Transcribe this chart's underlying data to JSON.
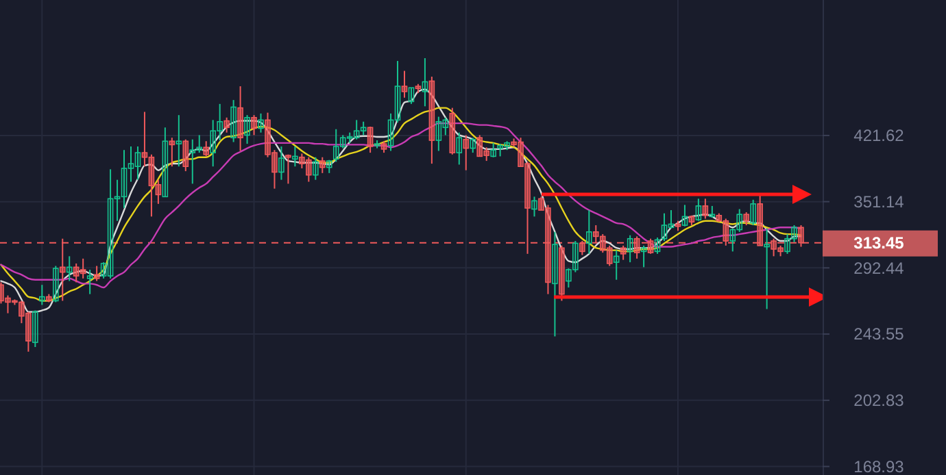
{
  "chart_data": {
    "type": "candlestick",
    "categories": [
      null,
      null,
      null,
      null,
      null,
      null,
      null,
      null,
      null,
      null,
      null,
      null,
      null,
      null,
      null,
      null,
      null,
      null,
      null,
      null,
      null,
      null,
      null,
      null,
      null,
      null,
      null,
      null,
      null,
      null,
      null,
      null,
      null,
      null,
      null,
      null,
      null,
      null,
      null,
      null,
      null,
      null,
      null,
      null,
      null,
      null,
      null,
      null,
      null,
      null,
      null,
      null,
      null,
      null,
      null,
      null,
      null,
      null,
      null,
      null,
      null,
      null,
      null,
      null,
      null,
      null,
      null,
      null,
      null,
      null,
      null,
      null,
      null,
      null,
      null,
      null,
      null,
      null,
      null,
      null,
      null,
      null,
      null,
      null,
      null,
      null,
      null,
      null,
      null,
      null,
      null,
      null,
      null,
      null,
      null,
      null,
      null,
      null,
      null,
      null,
      null,
      null,
      null,
      null,
      null,
      null,
      null,
      null,
      null,
      null,
      null,
      null,
      null,
      null,
      null,
      null,
      null,
      null
    ],
    "ohlc": [
      [
        279,
        281,
        265,
        267
      ],
      [
        269,
        271,
        258,
        266
      ],
      [
        267,
        268,
        264,
        266
      ],
      [
        266,
        267,
        251,
        256
      ],
      [
        258,
        259,
        232,
        239
      ],
      [
        238,
        260,
        235,
        259
      ],
      [
        267,
        279,
        264,
        270
      ],
      [
        270,
        272,
        266,
        267
      ],
      [
        267,
        294,
        266,
        292
      ],
      [
        293,
        317,
        267,
        289
      ],
      [
        289,
        302,
        282,
        293
      ],
      [
        293,
        296,
        281,
        286
      ],
      [
        291,
        300,
        284,
        288
      ],
      [
        284,
        291,
        272,
        286
      ],
      [
        287,
        294,
        282,
        284
      ],
      [
        286,
        297,
        284,
        296
      ],
      [
        286,
        384,
        284,
        354
      ],
      [
        354,
        373,
        333,
        356
      ],
      [
        356,
        405,
        345,
        385
      ],
      [
        385,
        409,
        371,
        390
      ],
      [
        387,
        409,
        373,
        402
      ],
      [
        402,
        450,
        387,
        397
      ],
      [
        397,
        400,
        337,
        367
      ],
      [
        368,
        373,
        349,
        358
      ],
      [
        356,
        431,
        356,
        415
      ],
      [
        415,
        419,
        387,
        411
      ],
      [
        412,
        446,
        387,
        415
      ],
      [
        415,
        417,
        382,
        387
      ],
      [
        402,
        417,
        369,
        405
      ],
      [
        405,
        422,
        402,
        408
      ],
      [
        408,
        415,
        398,
        400
      ],
      [
        402,
        440,
        387,
        427
      ],
      [
        427,
        460,
        416,
        438
      ],
      [
        439,
        443,
        425,
        431
      ],
      [
        419,
        465,
        414,
        456
      ],
      [
        455,
        483,
        404,
        419
      ],
      [
        422,
        446,
        412,
        443
      ],
      [
        443,
        446,
        422,
        430
      ],
      [
        430,
        448,
        425,
        440
      ],
      [
        440,
        449,
        397,
        400
      ],
      [
        402,
        405,
        364,
        381
      ],
      [
        381,
        409,
        373,
        396
      ],
      [
        399,
        400,
        369,
        397
      ],
      [
        395,
        409,
        387,
        398
      ],
      [
        397,
        401,
        385,
        390
      ],
      [
        394,
        397,
        371,
        378
      ],
      [
        378,
        397,
        373,
        392
      ],
      [
        393,
        397,
        380,
        386
      ],
      [
        386,
        394,
        380,
        393
      ],
      [
        395,
        429,
        392,
        409
      ],
      [
        409,
        422,
        407,
        419
      ],
      [
        419,
        425,
        413,
        420
      ],
      [
        419,
        440,
        417,
        427
      ],
      [
        427,
        438,
        422,
        431
      ],
      [
        431,
        432,
        402,
        409
      ],
      [
        410,
        416,
        407,
        412
      ],
      [
        412,
        415,
        402,
        406
      ],
      [
        410,
        448,
        404,
        440
      ],
      [
        440,
        518,
        437,
        483
      ],
      [
        483,
        504,
        468,
        476
      ],
      [
        463,
        481,
        460,
        481
      ],
      [
        483,
        486,
        474,
        480
      ],
      [
        476,
        522,
        457,
        489
      ],
      [
        490,
        496,
        390,
        416
      ],
      [
        416,
        444,
        404,
        438
      ],
      [
        431,
        443,
        422,
        440
      ],
      [
        448,
        455,
        400,
        402
      ],
      [
        402,
        425,
        389,
        419
      ],
      [
        417,
        422,
        383,
        407
      ],
      [
        407,
        419,
        402,
        417
      ],
      [
        419,
        422,
        398,
        398
      ],
      [
        404,
        408,
        393,
        399
      ],
      [
        398,
        413,
        397,
        405
      ],
      [
        407,
        412,
        398,
        410
      ],
      [
        409,
        415,
        405,
        413
      ],
      [
        414,
        418,
        409,
        411
      ],
      [
        414,
        419,
        387,
        387
      ],
      [
        390,
        392,
        304,
        345
      ],
      [
        344,
        356,
        337,
        352
      ],
      [
        354,
        356,
        343,
        343
      ],
      [
        345,
        348,
        272,
        281
      ],
      [
        280,
        323,
        242,
        312
      ],
      [
        309,
        311,
        267,
        272
      ],
      [
        282,
        292,
        277,
        291
      ],
      [
        291,
        315,
        289,
        313
      ],
      [
        313,
        315,
        303,
        306
      ],
      [
        313,
        343,
        304,
        323
      ],
      [
        323,
        329,
        313,
        319
      ],
      [
        319,
        321,
        305,
        307
      ],
      [
        309,
        311,
        294,
        296
      ],
      [
        297,
        307,
        283,
        302
      ],
      [
        309,
        311,
        299,
        304
      ],
      [
        306,
        320,
        297,
        317
      ],
      [
        317,
        319,
        300,
        305
      ],
      [
        306,
        311,
        293,
        309
      ],
      [
        315,
        317,
        304,
        305
      ],
      [
        306,
        318,
        304,
        316
      ],
      [
        317,
        340,
        315,
        329
      ],
      [
        327,
        343,
        326,
        330
      ],
      [
        330,
        333,
        324,
        328
      ],
      [
        329,
        348,
        328,
        337
      ],
      [
        337,
        338,
        329,
        332
      ],
      [
        334,
        354,
        333,
        347
      ],
      [
        347,
        354,
        335,
        338
      ],
      [
        337,
        347,
        336,
        339
      ],
      [
        338,
        340,
        332,
        333
      ],
      [
        333,
        335,
        311,
        315
      ],
      [
        315,
        326,
        306,
        325
      ],
      [
        325,
        344,
        323,
        339
      ],
      [
        339,
        341,
        329,
        333
      ],
      [
        331,
        353,
        329,
        349
      ],
      [
        349,
        359,
        311,
        311
      ],
      [
        310,
        326,
        261,
        312
      ],
      [
        315,
        317,
        302,
        308
      ],
      [
        309,
        311,
        302,
        306
      ],
      [
        306,
        321,
        304,
        317
      ],
      [
        317,
        329,
        314,
        327
      ],
      [
        327,
        329,
        310,
        313.45
      ]
    ],
    "series": [
      {
        "type": "line",
        "color": "#d9d9d9",
        "values": [
          282,
          280,
          277,
          268,
          259,
          259,
          260,
          262,
          272,
          282,
          287,
          289,
          290,
          288,
          286,
          287,
          311,
          327,
          343,
          360,
          374,
          388,
          389,
          383,
          388,
          390,
          390,
          395,
          404,
          406,
          404,
          412,
          422,
          432,
          437,
          439,
          439,
          439,
          437,
          427,
          414,
          402,
          393,
          392,
          391,
          391,
          391,
          390,
          389,
          395,
          404,
          414,
          420,
          421,
          421,
          420,
          420,
          422,
          441,
          462,
          464,
          476,
          479,
          471,
          457,
          443,
          431,
          422,
          420,
          417,
          410,
          406,
          406,
          406,
          407,
          408,
          402,
          390,
          374,
          360,
          339,
          323,
          308,
          298,
          297,
          300,
          304,
          311,
          315,
          313,
          309,
          308,
          308,
          309,
          309,
          309,
          313,
          319,
          327,
          331,
          335,
          337,
          338,
          339,
          337,
          333,
          330,
          327,
          331,
          333,
          331,
          331,
          325,
          319,
          315,
          315,
          319,
          319
        ]
      },
      {
        "type": "line",
        "color": "#e6d21e",
        "values": [
          295,
          288,
          282,
          276,
          270,
          269,
          267,
          267,
          269,
          271,
          274,
          276,
          279,
          282,
          286,
          291,
          304,
          315,
          327,
          337,
          347,
          356,
          363,
          374,
          385,
          391,
          393,
          395,
          395,
          397,
          397,
          402,
          414,
          420,
          421,
          423,
          426,
          430,
          432,
          431,
          428,
          422,
          416,
          410,
          404,
          399,
          395,
          391,
          391,
          395,
          398,
          401,
          403,
          406,
          410,
          411,
          414,
          417,
          425,
          436,
          441,
          446,
          450,
          452,
          455,
          455,
          450,
          441,
          431,
          422,
          416,
          414,
          413,
          411,
          410,
          408,
          402,
          395,
          388,
          378,
          369,
          358,
          345,
          333,
          323,
          317,
          313,
          309,
          308,
          307,
          307,
          306,
          306,
          307,
          308,
          308,
          309,
          313,
          317,
          321,
          325,
          328,
          331,
          333,
          333,
          332,
          331,
          330,
          331,
          331,
          330,
          329,
          327,
          325,
          322,
          321,
          321,
          320
        ]
      },
      {
        "type": "line",
        "color": "#c83cb4",
        "values": [
          295,
          292,
          289,
          287,
          284,
          283,
          283,
          283,
          283,
          283,
          284,
          282,
          280,
          280,
          279,
          277,
          282,
          286,
          289,
          295,
          300,
          308,
          315,
          325,
          335,
          341,
          347,
          354,
          360,
          365,
          369,
          376,
          383,
          391,
          399,
          403,
          407,
          410,
          412,
          413,
          413,
          413,
          413,
          413,
          413,
          413,
          412,
          412,
          411,
          411,
          411,
          411,
          411,
          411,
          410,
          410,
          410,
          408,
          410,
          414,
          420,
          423,
          428,
          432,
          436,
          436,
          436,
          436,
          436,
          435,
          434,
          434,
          433,
          432,
          430,
          422,
          414,
          406,
          397,
          388,
          378,
          371,
          365,
          358,
          352,
          347,
          343,
          340,
          337,
          334,
          331,
          330,
          327,
          322,
          317,
          313,
          310,
          310,
          310,
          311,
          312,
          313,
          315,
          316,
          318,
          319,
          320,
          320,
          321,
          322,
          323,
          324,
          325,
          326,
          327,
          327,
          327,
          326
        ]
      }
    ],
    "log": "y",
    "ylim": [
      165,
      613
    ],
    "yticks": [
      168.93,
      202.83,
      243.55,
      292.44,
      351.14,
      421.62
    ],
    "grid": true,
    "tick_labels": "y",
    "ref_lines": [
      {
        "axis": "y",
        "value": 313.45,
        "label": "313.45",
        "color": "#f0595b",
        "line_style": "dashed"
      }
    ]
  }
}
